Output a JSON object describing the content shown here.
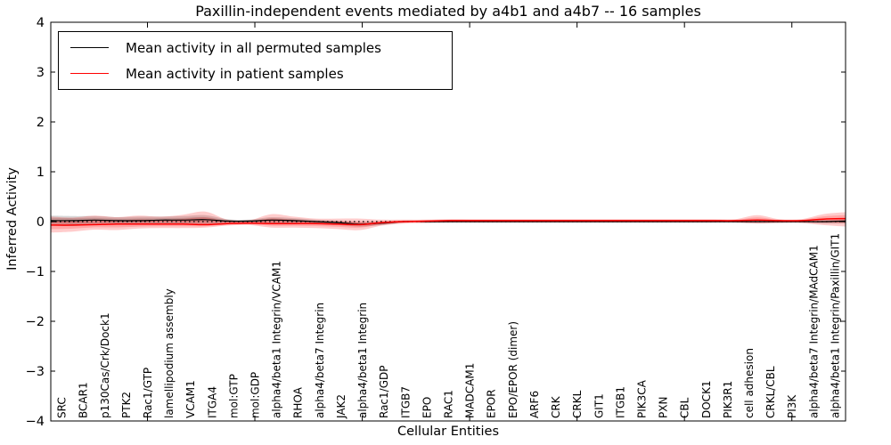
{
  "figure": {
    "title": "Paxillin-independent events mediated by a4b1 and a4b7 -- 16 samples",
    "background": "#ffffff"
  },
  "legend": {
    "position": "upper left",
    "entries": [
      {
        "label": "Mean activity in all permuted samples",
        "color": "#000000"
      },
      {
        "label": "Mean activity in patient samples",
        "color": "#ff0000"
      }
    ]
  },
  "chart_data": {
    "type": "line",
    "title": "Paxillin-independent events mediated by a4b1 and a4b7 -- 16 samples",
    "xlabel": "Cellular Entities",
    "ylabel": "Inferred Activity",
    "ylim": [
      -4,
      4
    ],
    "yticks": [
      4,
      3,
      2,
      1,
      0,
      -1,
      -2,
      -3,
      -4
    ],
    "x_major_tick_indices": [
      4,
      9,
      14,
      19,
      24,
      29,
      34
    ],
    "grid": false,
    "zero_line": {
      "y": 0,
      "style": "dotted",
      "color": "#000000"
    },
    "categories": [
      "SRC",
      "BCAR1",
      "p130Cas/Crk/Dock1",
      "PTK2",
      "Rac1/GTP",
      "lamellipodium assembly",
      "VCAM1",
      "ITGA4",
      "mol:GTP",
      "mol:GDP",
      "alpha4/beta1 Integrin/VCAM1",
      "RHOA",
      "alpha4/beta7 Integrin",
      "JAK2",
      "alpha4/beta1 Integrin",
      "Rac1/GDP",
      "ITGB7",
      "EPO",
      "RAC1",
      "MADCAM1",
      "EPOR",
      "EPO/EPOR (dimer)",
      "ARF6",
      "CRK",
      "CRKL",
      "GIT1",
      "ITGB1",
      "PIK3CA",
      "PXN",
      "CBL",
      "DOCK1",
      "PIK3R1",
      "cell adhesion",
      "CRKL/CBL",
      "PI3K",
      "alpha4/beta7 Integrin/MAdCAM1",
      "alpha4/beta1 Integrin/Paxillin/GIT1"
    ],
    "series": [
      {
        "name": "Mean activity in all permuted samples",
        "color": "#000000",
        "band_color": "#000000",
        "band_alpha": 0.16,
        "values": [
          0.02,
          0.02,
          0.03,
          0.02,
          0.02,
          0.03,
          0.03,
          0.04,
          0.01,
          0.01,
          0.03,
          0.02,
          0.0,
          -0.02,
          -0.05,
          -0.03,
          0.0,
          0.0,
          0.0,
          0.0,
          0.0,
          0.0,
          0.0,
          0.0,
          0.0,
          0.0,
          0.0,
          0.0,
          0.0,
          0.0,
          0.0,
          0.0,
          0.0,
          0.0,
          0.0,
          0.0,
          0.01
        ],
        "band_upper": [
          0.12,
          0.11,
          0.11,
          0.09,
          0.1,
          0.1,
          0.11,
          0.13,
          0.05,
          0.04,
          0.09,
          0.07,
          0.04,
          0.02,
          -0.01,
          0.0,
          0.02,
          0.02,
          0.02,
          0.02,
          0.02,
          0.02,
          0.02,
          0.02,
          0.02,
          0.02,
          0.02,
          0.02,
          0.02,
          0.02,
          0.02,
          0.02,
          0.03,
          0.02,
          0.02,
          0.03,
          0.05
        ],
        "band_lower": [
          -0.08,
          -0.09,
          -0.06,
          -0.06,
          -0.06,
          -0.05,
          -0.06,
          -0.05,
          -0.03,
          -0.03,
          -0.04,
          -0.04,
          -0.05,
          -0.07,
          -0.1,
          -0.07,
          -0.02,
          -0.02,
          -0.02,
          -0.02,
          -0.02,
          -0.02,
          -0.02,
          -0.02,
          -0.02,
          -0.02,
          -0.02,
          -0.02,
          -0.02,
          -0.02,
          -0.02,
          -0.02,
          -0.03,
          -0.02,
          -0.02,
          -0.04,
          -0.04
        ]
      },
      {
        "name": "Mean activity in patient samples",
        "color": "#ff0000",
        "band_color": "#ff0000",
        "band_alpha": 0.2,
        "values": [
          -0.07,
          -0.07,
          -0.06,
          -0.05,
          -0.05,
          -0.05,
          -0.05,
          -0.06,
          -0.04,
          -0.03,
          -0.04,
          -0.04,
          -0.04,
          -0.05,
          -0.06,
          -0.02,
          0.0,
          0.01,
          0.02,
          0.02,
          0.02,
          0.02,
          0.02,
          0.02,
          0.02,
          0.02,
          0.02,
          0.02,
          0.02,
          0.02,
          0.02,
          0.02,
          0.03,
          0.02,
          0.02,
          0.05,
          0.06
        ],
        "band_upper": [
          0.1,
          0.08,
          0.12,
          0.09,
          0.12,
          0.1,
          0.14,
          0.2,
          0.04,
          0.03,
          0.15,
          0.1,
          0.06,
          0.06,
          0.06,
          0.04,
          0.04,
          0.04,
          0.05,
          0.05,
          0.05,
          0.05,
          0.05,
          0.05,
          0.05,
          0.05,
          0.05,
          0.05,
          0.05,
          0.05,
          0.05,
          0.05,
          0.13,
          0.05,
          0.05,
          0.15,
          0.19
        ],
        "band_lower": [
          -0.22,
          -0.2,
          -0.16,
          -0.17,
          -0.14,
          -0.13,
          -0.13,
          -0.12,
          -0.08,
          -0.07,
          -0.12,
          -0.12,
          -0.13,
          -0.15,
          -0.17,
          -0.08,
          -0.04,
          -0.03,
          -0.02,
          -0.02,
          -0.02,
          -0.02,
          -0.02,
          -0.02,
          -0.02,
          -0.02,
          -0.02,
          -0.02,
          -0.02,
          -0.02,
          -0.02,
          -0.02,
          -0.04,
          -0.03,
          -0.03,
          -0.07,
          -0.1
        ]
      }
    ]
  }
}
